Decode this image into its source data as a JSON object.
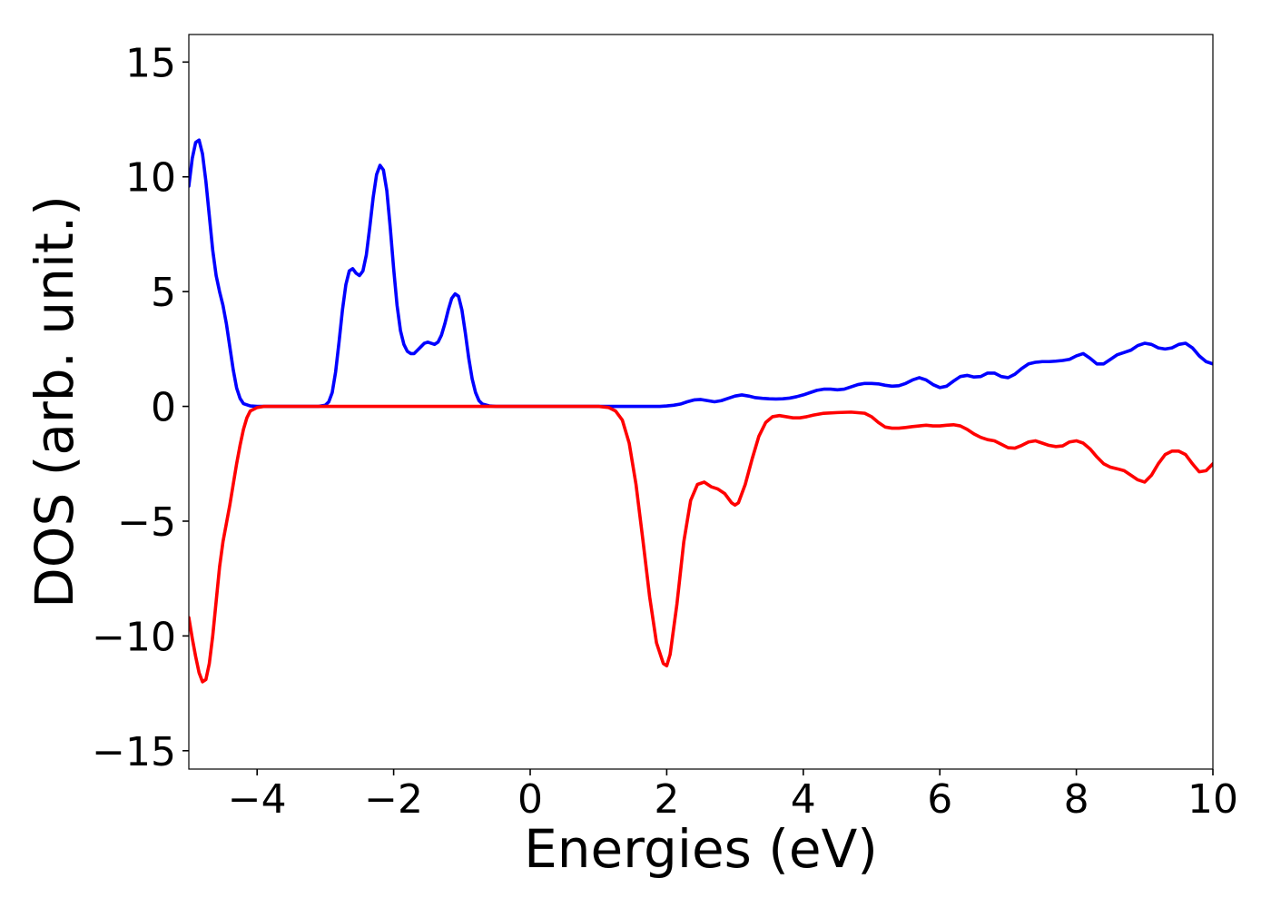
{
  "chart_data": {
    "type": "line",
    "title": "",
    "xlabel": "Energies (eV)",
    "ylabel": "DOS (arb. unit.)",
    "xlim": [
      -5,
      10
    ],
    "ylim": [
      -15.8,
      16.2
    ],
    "xticks": [
      -4,
      -2,
      0,
      2,
      4,
      6,
      8,
      10
    ],
    "yticks": [
      -15,
      -10,
      -5,
      0,
      5,
      10,
      15
    ],
    "xtick_labels": [
      "−4",
      "−2",
      "0",
      "2",
      "4",
      "6",
      "8",
      "10"
    ],
    "ytick_labels": [
      "−15",
      "−10",
      "−5",
      "0",
      "5",
      "10",
      "15"
    ],
    "grid": false,
    "legend": null,
    "series": [
      {
        "color": "#0000ff",
        "points": [
          [
            -5.0,
            9.6
          ],
          [
            -4.95,
            10.8
          ],
          [
            -4.9,
            11.5
          ],
          [
            -4.85,
            11.6
          ],
          [
            -4.8,
            11.0
          ],
          [
            -4.75,
            9.8
          ],
          [
            -4.7,
            8.3
          ],
          [
            -4.65,
            6.8
          ],
          [
            -4.6,
            5.7
          ],
          [
            -4.55,
            5.0
          ],
          [
            -4.5,
            4.4
          ],
          [
            -4.45,
            3.6
          ],
          [
            -4.4,
            2.6
          ],
          [
            -4.35,
            1.6
          ],
          [
            -4.3,
            0.8
          ],
          [
            -4.25,
            0.35
          ],
          [
            -4.2,
            0.12
          ],
          [
            -4.1,
            0.02
          ],
          [
            -4.0,
            0.0
          ],
          [
            -3.5,
            0.0
          ],
          [
            -3.1,
            0.0
          ],
          [
            -3.0,
            0.05
          ],
          [
            -2.95,
            0.2
          ],
          [
            -2.9,
            0.6
          ],
          [
            -2.85,
            1.5
          ],
          [
            -2.8,
            2.8
          ],
          [
            -2.75,
            4.2
          ],
          [
            -2.7,
            5.3
          ],
          [
            -2.65,
            5.9
          ],
          [
            -2.6,
            6.0
          ],
          [
            -2.55,
            5.8
          ],
          [
            -2.5,
            5.7
          ],
          [
            -2.45,
            5.9
          ],
          [
            -2.4,
            6.6
          ],
          [
            -2.35,
            7.8
          ],
          [
            -2.3,
            9.1
          ],
          [
            -2.25,
            10.1
          ],
          [
            -2.2,
            10.5
          ],
          [
            -2.15,
            10.3
          ],
          [
            -2.1,
            9.4
          ],
          [
            -2.05,
            7.8
          ],
          [
            -2.0,
            6.0
          ],
          [
            -1.95,
            4.4
          ],
          [
            -1.9,
            3.3
          ],
          [
            -1.85,
            2.7
          ],
          [
            -1.8,
            2.4
          ],
          [
            -1.75,
            2.3
          ],
          [
            -1.7,
            2.3
          ],
          [
            -1.65,
            2.45
          ],
          [
            -1.6,
            2.6
          ],
          [
            -1.55,
            2.75
          ],
          [
            -1.5,
            2.8
          ],
          [
            -1.45,
            2.75
          ],
          [
            -1.4,
            2.7
          ],
          [
            -1.35,
            2.8
          ],
          [
            -1.3,
            3.1
          ],
          [
            -1.25,
            3.6
          ],
          [
            -1.2,
            4.2
          ],
          [
            -1.15,
            4.7
          ],
          [
            -1.1,
            4.9
          ],
          [
            -1.05,
            4.8
          ],
          [
            -1.0,
            4.2
          ],
          [
            -0.95,
            3.2
          ],
          [
            -0.9,
            2.1
          ],
          [
            -0.85,
            1.2
          ],
          [
            -0.8,
            0.6
          ],
          [
            -0.75,
            0.25
          ],
          [
            -0.7,
            0.1
          ],
          [
            -0.6,
            0.02
          ],
          [
            -0.5,
            0.0
          ],
          [
            0.0,
            0.0
          ],
          [
            1.0,
            0.0
          ],
          [
            1.5,
            0.0
          ],
          [
            1.9,
            0.0
          ],
          [
            2.0,
            0.02
          ],
          [
            2.1,
            0.05
          ],
          [
            2.2,
            0.1
          ],
          [
            2.3,
            0.2
          ],
          [
            2.4,
            0.28
          ],
          [
            2.5,
            0.3
          ],
          [
            2.6,
            0.25
          ],
          [
            2.7,
            0.2
          ],
          [
            2.8,
            0.25
          ],
          [
            2.9,
            0.35
          ],
          [
            3.0,
            0.45
          ],
          [
            3.1,
            0.5
          ],
          [
            3.2,
            0.45
          ],
          [
            3.3,
            0.38
          ],
          [
            3.4,
            0.35
          ],
          [
            3.5,
            0.33
          ],
          [
            3.6,
            0.32
          ],
          [
            3.7,
            0.33
          ],
          [
            3.8,
            0.36
          ],
          [
            3.9,
            0.42
          ],
          [
            4.0,
            0.5
          ],
          [
            4.1,
            0.6
          ],
          [
            4.2,
            0.7
          ],
          [
            4.3,
            0.75
          ],
          [
            4.4,
            0.75
          ],
          [
            4.5,
            0.72
          ],
          [
            4.6,
            0.75
          ],
          [
            4.7,
            0.85
          ],
          [
            4.8,
            0.95
          ],
          [
            4.9,
            1.0
          ],
          [
            5.0,
            1.0
          ],
          [
            5.1,
            0.98
          ],
          [
            5.2,
            0.92
          ],
          [
            5.3,
            0.88
          ],
          [
            5.4,
            0.9
          ],
          [
            5.5,
            1.0
          ],
          [
            5.6,
            1.15
          ],
          [
            5.7,
            1.25
          ],
          [
            5.8,
            1.15
          ],
          [
            5.9,
            0.95
          ],
          [
            6.0,
            0.82
          ],
          [
            6.1,
            0.88
          ],
          [
            6.2,
            1.1
          ],
          [
            6.3,
            1.3
          ],
          [
            6.4,
            1.35
          ],
          [
            6.5,
            1.28
          ],
          [
            6.6,
            1.3
          ],
          [
            6.7,
            1.45
          ],
          [
            6.8,
            1.45
          ],
          [
            6.9,
            1.3
          ],
          [
            7.0,
            1.25
          ],
          [
            7.1,
            1.4
          ],
          [
            7.2,
            1.65
          ],
          [
            7.3,
            1.85
          ],
          [
            7.4,
            1.92
          ],
          [
            7.5,
            1.95
          ],
          [
            7.6,
            1.95
          ],
          [
            7.7,
            1.97
          ],
          [
            7.8,
            2.0
          ],
          [
            7.9,
            2.05
          ],
          [
            8.0,
            2.2
          ],
          [
            8.1,
            2.3
          ],
          [
            8.2,
            2.1
          ],
          [
            8.3,
            1.85
          ],
          [
            8.4,
            1.85
          ],
          [
            8.5,
            2.05
          ],
          [
            8.6,
            2.25
          ],
          [
            8.7,
            2.35
          ],
          [
            8.8,
            2.45
          ],
          [
            8.9,
            2.65
          ],
          [
            9.0,
            2.75
          ],
          [
            9.1,
            2.7
          ],
          [
            9.2,
            2.55
          ],
          [
            9.3,
            2.5
          ],
          [
            9.4,
            2.55
          ],
          [
            9.5,
            2.7
          ],
          [
            9.6,
            2.75
          ],
          [
            9.7,
            2.55
          ],
          [
            9.8,
            2.2
          ],
          [
            9.9,
            1.95
          ],
          [
            10.0,
            1.85
          ]
        ]
      },
      {
        "color": "#ff0000",
        "points": [
          [
            -5.0,
            -9.2
          ],
          [
            -4.95,
            -10.1
          ],
          [
            -4.9,
            -10.9
          ],
          [
            -4.85,
            -11.6
          ],
          [
            -4.8,
            -12.0
          ],
          [
            -4.75,
            -11.9
          ],
          [
            -4.7,
            -11.2
          ],
          [
            -4.65,
            -10.0
          ],
          [
            -4.6,
            -8.5
          ],
          [
            -4.55,
            -7.0
          ],
          [
            -4.5,
            -5.9
          ],
          [
            -4.45,
            -5.1
          ],
          [
            -4.4,
            -4.3
          ],
          [
            -4.35,
            -3.4
          ],
          [
            -4.3,
            -2.5
          ],
          [
            -4.25,
            -1.7
          ],
          [
            -4.2,
            -1.0
          ],
          [
            -4.15,
            -0.5
          ],
          [
            -4.1,
            -0.2
          ],
          [
            -4.0,
            -0.05
          ],
          [
            -3.9,
            0.0
          ],
          [
            -2.0,
            0.0
          ],
          [
            0.0,
            0.0
          ],
          [
            1.0,
            0.0
          ],
          [
            1.15,
            -0.05
          ],
          [
            1.25,
            -0.2
          ],
          [
            1.35,
            -0.6
          ],
          [
            1.45,
            -1.6
          ],
          [
            1.55,
            -3.4
          ],
          [
            1.65,
            -5.8
          ],
          [
            1.75,
            -8.3
          ],
          [
            1.85,
            -10.3
          ],
          [
            1.95,
            -11.2
          ],
          [
            2.0,
            -11.3
          ],
          [
            2.05,
            -10.8
          ],
          [
            2.15,
            -8.6
          ],
          [
            2.25,
            -5.9
          ],
          [
            2.35,
            -4.1
          ],
          [
            2.45,
            -3.4
          ],
          [
            2.55,
            -3.3
          ],
          [
            2.65,
            -3.5
          ],
          [
            2.75,
            -3.6
          ],
          [
            2.85,
            -3.8
          ],
          [
            2.95,
            -4.2
          ],
          [
            3.0,
            -4.3
          ],
          [
            3.05,
            -4.2
          ],
          [
            3.15,
            -3.4
          ],
          [
            3.25,
            -2.3
          ],
          [
            3.35,
            -1.3
          ],
          [
            3.45,
            -0.7
          ],
          [
            3.55,
            -0.45
          ],
          [
            3.65,
            -0.4
          ],
          [
            3.75,
            -0.45
          ],
          [
            3.85,
            -0.5
          ],
          [
            3.95,
            -0.5
          ],
          [
            4.05,
            -0.45
          ],
          [
            4.15,
            -0.38
          ],
          [
            4.3,
            -0.3
          ],
          [
            4.5,
            -0.27
          ],
          [
            4.7,
            -0.25
          ],
          [
            4.9,
            -0.3
          ],
          [
            5.0,
            -0.45
          ],
          [
            5.1,
            -0.7
          ],
          [
            5.2,
            -0.9
          ],
          [
            5.3,
            -0.95
          ],
          [
            5.4,
            -0.95
          ],
          [
            5.5,
            -0.92
          ],
          [
            5.6,
            -0.88
          ],
          [
            5.7,
            -0.85
          ],
          [
            5.8,
            -0.82
          ],
          [
            5.9,
            -0.85
          ],
          [
            6.0,
            -0.85
          ],
          [
            6.1,
            -0.82
          ],
          [
            6.2,
            -0.8
          ],
          [
            6.3,
            -0.85
          ],
          [
            6.4,
            -1.0
          ],
          [
            6.5,
            -1.2
          ],
          [
            6.6,
            -1.35
          ],
          [
            6.7,
            -1.45
          ],
          [
            6.8,
            -1.5
          ],
          [
            6.9,
            -1.65
          ],
          [
            7.0,
            -1.8
          ],
          [
            7.1,
            -1.82
          ],
          [
            7.2,
            -1.7
          ],
          [
            7.3,
            -1.55
          ],
          [
            7.4,
            -1.5
          ],
          [
            7.5,
            -1.6
          ],
          [
            7.6,
            -1.7
          ],
          [
            7.7,
            -1.75
          ],
          [
            7.8,
            -1.72
          ],
          [
            7.9,
            -1.55
          ],
          [
            8.0,
            -1.5
          ],
          [
            8.1,
            -1.6
          ],
          [
            8.2,
            -1.85
          ],
          [
            8.3,
            -2.2
          ],
          [
            8.4,
            -2.5
          ],
          [
            8.5,
            -2.65
          ],
          [
            8.6,
            -2.72
          ],
          [
            8.7,
            -2.8
          ],
          [
            8.8,
            -3.0
          ],
          [
            8.9,
            -3.2
          ],
          [
            9.0,
            -3.3
          ],
          [
            9.1,
            -3.0
          ],
          [
            9.2,
            -2.5
          ],
          [
            9.3,
            -2.1
          ],
          [
            9.4,
            -1.95
          ],
          [
            9.5,
            -1.95
          ],
          [
            9.6,
            -2.1
          ],
          [
            9.7,
            -2.5
          ],
          [
            9.8,
            -2.85
          ],
          [
            9.9,
            -2.8
          ],
          [
            10.0,
            -2.5
          ]
        ]
      }
    ]
  }
}
